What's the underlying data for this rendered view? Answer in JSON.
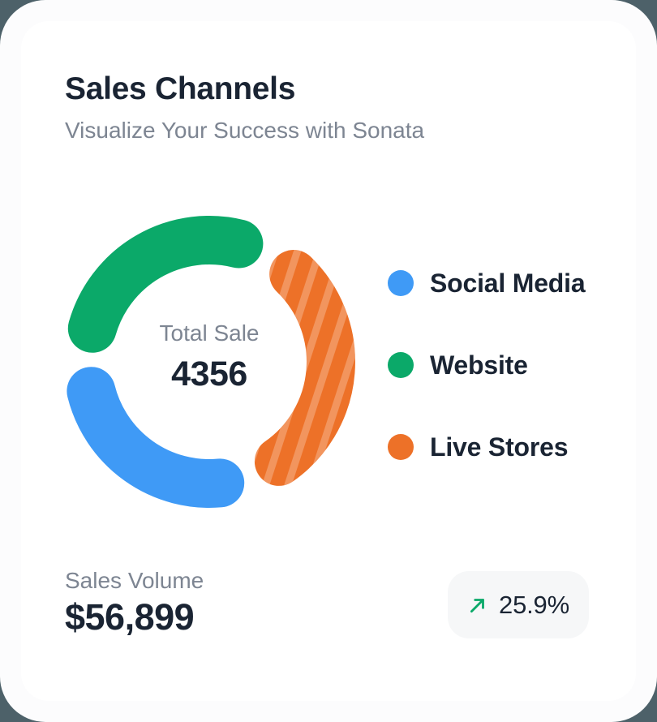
{
  "header": {
    "title": "Sales Channels",
    "subtitle": "Visualize Your Success with Sonata"
  },
  "chart_data": {
    "type": "pie",
    "variant": "donut-segmented-rounded",
    "title": "Sales Channels",
    "center_label": "Total Sale",
    "center_value": "4356",
    "legend_position": "right",
    "segments": [
      {
        "label": "Social Media",
        "color": "#3f9af6",
        "percent": 31,
        "start_deg": 182.5,
        "end_deg": 286.5,
        "striped": false
      },
      {
        "label": "Website",
        "color": "#0ba969",
        "percent": 33,
        "start_deg": 64.5,
        "end_deg": 175.5,
        "striped": false
      },
      {
        "label": "Live Stores",
        "color": "#ed7128",
        "percent": 36,
        "start_deg": 293.5,
        "end_deg": 417.5,
        "striped": true
      }
    ]
  },
  "footer": {
    "label": "Sales Volume",
    "value": "$56,899",
    "badge": {
      "value": "25.9%",
      "direction": "up",
      "color": "#0ba969"
    }
  }
}
